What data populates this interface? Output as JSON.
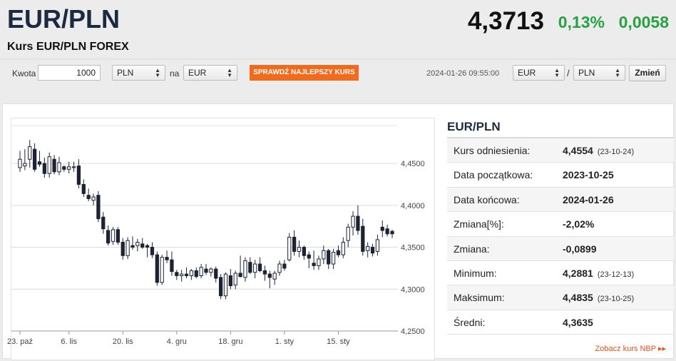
{
  "header": {
    "pair": "EUR/PLN",
    "subtitle": "Kurs EUR/PLN FOREX",
    "rate": "4,3713",
    "change_pct": "0,13%",
    "change_abs": "0,0058"
  },
  "converter": {
    "amount_label": "Kwota",
    "amount_value": "1000",
    "from_currency": "PLN",
    "na_label": "na",
    "to_currency": "EUR",
    "best_rate_button": "SPRAWDŹ NAJLEPSZY KURS",
    "timestamp": "2024-01-26 09:55:00",
    "pair_base": "EUR",
    "slash": "/",
    "pair_quote": "PLN",
    "change_button": "Zmień"
  },
  "stats": {
    "title": "EUR/PLN",
    "rows": [
      {
        "label": "Kurs odniesienia:",
        "value": "4,4554",
        "date": "(23-10-24)"
      },
      {
        "label": "Data początkowa:",
        "value": "2023-10-25",
        "date": ""
      },
      {
        "label": "Data końcowa:",
        "value": "2024-01-26",
        "date": ""
      },
      {
        "label": "Zmiana[%]:",
        "value": "-2,02%",
        "date": ""
      },
      {
        "label": "Zmiana:",
        "value": "-0,0899",
        "date": ""
      },
      {
        "label": "Minimum:",
        "value": "4,2881",
        "date": "(23-12-13)"
      },
      {
        "label": "Maksimum:",
        "value": "4,4835",
        "date": "(23-10-25)"
      },
      {
        "label": "Średni:",
        "value": "4,3635",
        "date": ""
      }
    ],
    "nbp_link": "Zobacz kurs NBP ▸▸"
  },
  "chart_data": {
    "type": "candlestick",
    "y_ticks": [
      "4,2500",
      "4,3000",
      "4,3500",
      "4,4000",
      "4,4500"
    ],
    "y_tick_values": [
      4.25,
      4.3,
      4.35,
      4.4,
      4.45
    ],
    "ylim": [
      4.25,
      4.4935
    ],
    "x_ticks": [
      "23. paź",
      "6. lis",
      "20. lis",
      "4. gru",
      "18. gru",
      "1. sty",
      "15. sty"
    ],
    "x_tick_index": [
      0,
      10,
      21,
      32,
      43,
      54,
      65
    ],
    "up_color": "#ffffff",
    "down_color": "#1c2334",
    "candles": [
      {
        "o": 4.445,
        "h": 4.465,
        "l": 4.44,
        "c": 4.455
      },
      {
        "o": 4.447,
        "h": 4.467,
        "l": 4.442,
        "c": 4.45
      },
      {
        "o": 4.455,
        "h": 4.478,
        "l": 4.445,
        "c": 4.47
      },
      {
        "o": 4.467,
        "h": 4.474,
        "l": 4.44,
        "c": 4.443
      },
      {
        "o": 4.452,
        "h": 4.465,
        "l": 4.446,
        "c": 4.449
      },
      {
        "o": 4.45,
        "h": 4.457,
        "l": 4.433,
        "c": 4.438
      },
      {
        "o": 4.438,
        "h": 4.463,
        "l": 4.433,
        "c": 4.458
      },
      {
        "o": 4.455,
        "h": 4.46,
        "l": 4.437,
        "c": 4.44
      },
      {
        "o": 4.44,
        "h": 4.458,
        "l": 4.436,
        "c": 4.451
      },
      {
        "o": 4.446,
        "h": 4.448,
        "l": 4.44,
        "c": 4.443
      },
      {
        "o": 4.443,
        "h": 4.452,
        "l": 4.438,
        "c": 4.446
      },
      {
        "o": 4.445,
        "h": 4.452,
        "l": 4.44,
        "c": 4.446
      },
      {
        "o": 4.447,
        "h": 4.455,
        "l": 4.42,
        "c": 4.425
      },
      {
        "o": 4.425,
        "h": 4.431,
        "l": 4.41,
        "c": 4.414
      },
      {
        "o": 4.412,
        "h": 4.42,
        "l": 4.405,
        "c": 4.408
      },
      {
        "o": 4.406,
        "h": 4.414,
        "l": 4.4,
        "c": 4.41
      },
      {
        "o": 4.412,
        "h": 4.417,
        "l": 4.38,
        "c": 4.384
      },
      {
        "o": 4.386,
        "h": 4.392,
        "l": 4.366,
        "c": 4.372
      },
      {
        "o": 4.37,
        "h": 4.376,
        "l": 4.352,
        "c": 4.355
      },
      {
        "o": 4.357,
        "h": 4.374,
        "l": 4.353,
        "c": 4.371
      },
      {
        "o": 4.371,
        "h": 4.374,
        "l": 4.353,
        "c": 4.356
      },
      {
        "o": 4.356,
        "h": 4.361,
        "l": 4.335,
        "c": 4.34
      },
      {
        "o": 4.34,
        "h": 4.362,
        "l": 4.336,
        "c": 4.358
      },
      {
        "o": 4.352,
        "h": 4.363,
        "l": 4.347,
        "c": 4.35
      },
      {
        "o": 4.352,
        "h": 4.36,
        "l": 4.345,
        "c": 4.356
      },
      {
        "o": 4.354,
        "h": 4.361,
        "l": 4.348,
        "c": 4.35
      },
      {
        "o": 4.352,
        "h": 4.354,
        "l": 4.338,
        "c": 4.35
      },
      {
        "o": 4.35,
        "h": 4.356,
        "l": 4.337,
        "c": 4.341
      },
      {
        "o": 4.341,
        "h": 4.345,
        "l": 4.304,
        "c": 4.308
      },
      {
        "o": 4.308,
        "h": 4.341,
        "l": 4.305,
        "c": 4.338
      },
      {
        "o": 4.338,
        "h": 4.346,
        "l": 4.331,
        "c": 4.335
      },
      {
        "o": 4.335,
        "h": 4.345,
        "l": 4.316,
        "c": 4.321
      },
      {
        "o": 4.32,
        "h": 4.323,
        "l": 4.311,
        "c": 4.316
      },
      {
        "o": 4.316,
        "h": 4.323,
        "l": 4.309,
        "c": 4.318
      },
      {
        "o": 4.318,
        "h": 4.326,
        "l": 4.313,
        "c": 4.316
      },
      {
        "o": 4.316,
        "h": 4.324,
        "l": 4.311,
        "c": 4.322
      },
      {
        "o": 4.322,
        "h": 4.326,
        "l": 4.313,
        "c": 4.315
      },
      {
        "o": 4.316,
        "h": 4.33,
        "l": 4.313,
        "c": 4.326
      },
      {
        "o": 4.324,
        "h": 4.33,
        "l": 4.317,
        "c": 4.32
      },
      {
        "o": 4.32,
        "h": 4.326,
        "l": 4.315,
        "c": 4.324
      },
      {
        "o": 4.324,
        "h": 4.327,
        "l": 4.308,
        "c": 4.313
      },
      {
        "o": 4.314,
        "h": 4.318,
        "l": 4.288,
        "c": 4.292
      },
      {
        "o": 4.292,
        "h": 4.32,
        "l": 4.288,
        "c": 4.318
      },
      {
        "o": 4.316,
        "h": 4.324,
        "l": 4.3,
        "c": 4.304
      },
      {
        "o": 4.305,
        "h": 4.322,
        "l": 4.3,
        "c": 4.319
      },
      {
        "o": 4.319,
        "h": 4.34,
        "l": 4.314,
        "c": 4.315
      },
      {
        "o": 4.314,
        "h": 4.338,
        "l": 4.309,
        "c": 4.334
      },
      {
        "o": 4.332,
        "h": 4.338,
        "l": 4.318,
        "c": 4.32
      },
      {
        "o": 4.32,
        "h": 4.335,
        "l": 4.313,
        "c": 4.33
      },
      {
        "o": 4.33,
        "h": 4.338,
        "l": 4.32,
        "c": 4.322
      },
      {
        "o": 4.322,
        "h": 4.328,
        "l": 4.31,
        "c": 4.318
      },
      {
        "o": 4.318,
        "h": 4.322,
        "l": 4.301,
        "c": 4.314
      },
      {
        "o": 4.312,
        "h": 4.322,
        "l": 4.305,
        "c": 4.319
      },
      {
        "o": 4.32,
        "h": 4.334,
        "l": 4.316,
        "c": 4.33
      },
      {
        "o": 4.33,
        "h": 4.335,
        "l": 4.322,
        "c": 4.325
      },
      {
        "o": 4.335,
        "h": 4.367,
        "l": 4.333,
        "c": 4.362
      },
      {
        "o": 4.362,
        "h": 4.37,
        "l": 4.34,
        "c": 4.345
      },
      {
        "o": 4.345,
        "h": 4.358,
        "l": 4.338,
        "c": 4.35
      },
      {
        "o": 4.35,
        "h": 4.352,
        "l": 4.335,
        "c": 4.34
      },
      {
        "o": 4.341,
        "h": 4.345,
        "l": 4.325,
        "c": 4.337
      },
      {
        "o": 4.331,
        "h": 4.346,
        "l": 4.323,
        "c": 4.328
      },
      {
        "o": 4.328,
        "h": 4.34,
        "l": 4.323,
        "c": 4.336
      },
      {
        "o": 4.336,
        "h": 4.352,
        "l": 4.33,
        "c": 4.346
      },
      {
        "o": 4.346,
        "h": 4.348,
        "l": 4.324,
        "c": 4.33
      },
      {
        "o": 4.33,
        "h": 4.348,
        "l": 4.324,
        "c": 4.344
      },
      {
        "o": 4.346,
        "h": 4.352,
        "l": 4.338,
        "c": 4.341
      },
      {
        "o": 4.341,
        "h": 4.362,
        "l": 4.337,
        "c": 4.356
      },
      {
        "o": 4.358,
        "h": 4.378,
        "l": 4.35,
        "c": 4.374
      },
      {
        "o": 4.374,
        "h": 4.393,
        "l": 4.364,
        "c": 4.387
      },
      {
        "o": 4.387,
        "h": 4.4,
        "l": 4.365,
        "c": 4.37
      },
      {
        "o": 4.375,
        "h": 4.384,
        "l": 4.34,
        "c": 4.345
      },
      {
        "o": 4.346,
        "h": 4.356,
        "l": 4.338,
        "c": 4.351
      },
      {
        "o": 4.35,
        "h": 4.354,
        "l": 4.339,
        "c": 4.343
      },
      {
        "o": 4.345,
        "h": 4.365,
        "l": 4.34,
        "c": 4.359
      },
      {
        "o": 4.374,
        "h": 4.382,
        "l": 4.362,
        "c": 4.37
      },
      {
        "o": 4.372,
        "h": 4.377,
        "l": 4.363,
        "c": 4.366
      },
      {
        "o": 4.369,
        "h": 4.371,
        "l": 4.361,
        "c": 4.366
      }
    ]
  }
}
